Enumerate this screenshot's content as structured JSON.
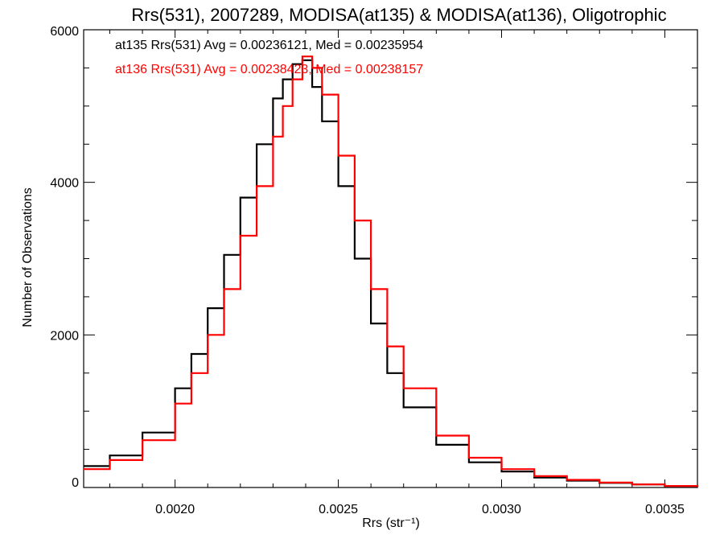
{
  "chart_data": {
    "type": "line",
    "title": "Rrs(531), 2007289, MODISA(at135) & MODISA(at136), Oligotrophic",
    "xlabel": "Rrs (str⁻¹)",
    "ylabel": "Number of Observations",
    "xlim": [
      0.00172,
      0.0036
    ],
    "ylim": [
      0,
      6000
    ],
    "xticks": [
      0.002,
      0.0025,
      0.003,
      0.0035
    ],
    "xtick_labels": [
      "0.0020",
      "0.0025",
      "0.0030",
      "0.0035"
    ],
    "yticks": [
      0,
      2000,
      4000,
      6000
    ],
    "ytick_labels": [
      "0",
      "2000",
      "4000",
      "6000"
    ],
    "grid": false,
    "annotations": [
      {
        "text": "at135 Rrs(531) Avg = 0.00236121, Med = 0.00235954",
        "color": "#000000"
      },
      {
        "text": "at136 Rrs(531) Avg = 0.00238423, Med = 0.00238157",
        "color": "#ff0000"
      }
    ],
    "series": [
      {
        "color": "#000000",
        "style": "step",
        "x": [
          0.00172,
          0.0018,
          0.0019,
          0.002,
          0.00205,
          0.0021,
          0.00215,
          0.0022,
          0.00225,
          0.0023,
          0.00233,
          0.00236,
          0.00239,
          0.00242,
          0.00245,
          0.0025,
          0.00255,
          0.0026,
          0.00265,
          0.0027,
          0.0028,
          0.0029,
          0.003,
          0.0031,
          0.0032,
          0.0033,
          0.0034,
          0.0035,
          0.0036
        ],
        "y": [
          280,
          420,
          720,
          1300,
          1750,
          2350,
          3050,
          3800,
          4500,
          5100,
          5350,
          5550,
          5600,
          5250,
          4800,
          3950,
          3000,
          2150,
          1500,
          1050,
          560,
          330,
          210,
          130,
          90,
          60,
          40,
          20,
          10
        ]
      },
      {
        "color": "#ff0000",
        "style": "step",
        "x": [
          0.00172,
          0.0018,
          0.0019,
          0.002,
          0.00205,
          0.0021,
          0.00215,
          0.0022,
          0.00225,
          0.0023,
          0.00233,
          0.00236,
          0.00239,
          0.00242,
          0.00245,
          0.0025,
          0.00255,
          0.0026,
          0.00265,
          0.0027,
          0.0028,
          0.0029,
          0.003,
          0.0031,
          0.0032,
          0.0033,
          0.0034,
          0.0035,
          0.0036
        ],
        "y": [
          240,
          360,
          620,
          1100,
          1500,
          2000,
          2600,
          3300,
          3950,
          4600,
          5000,
          5350,
          5650,
          5500,
          5150,
          4350,
          3500,
          2600,
          1850,
          1300,
          680,
          390,
          240,
          150,
          100,
          65,
          40,
          20,
          10
        ]
      }
    ]
  }
}
